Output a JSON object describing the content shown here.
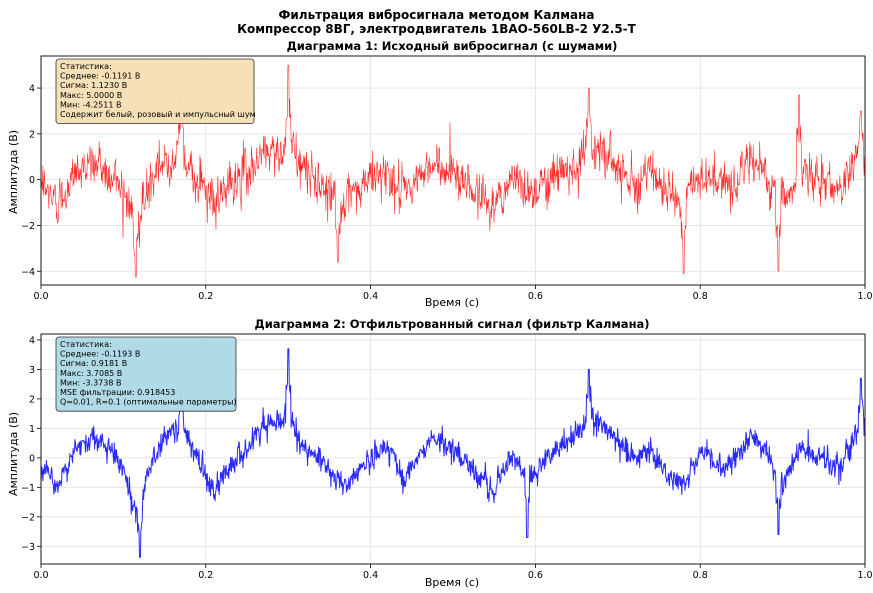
{
  "figure": {
    "title_line1": "Фильтрация вибросигнала методом Калмана",
    "title_line2": "Компрессор 8ВГ, электродвигатель 1ВАО-560LB-2 У2.5-Т"
  },
  "chart_data": [
    {
      "type": "line",
      "title": "Диаграмма 1: Исходный вибросигнал (с шумами)",
      "xlabel": "Время (с)",
      "ylabel": "Амплитуда (В)",
      "xlim": [
        0.0,
        1.0
      ],
      "ylim": [
        -4.6,
        5.4
      ],
      "x_ticks": [
        "0.0",
        "0.2",
        "0.4",
        "0.6",
        "0.8",
        "1.0"
      ],
      "y_ticks": [
        "−4",
        "−2",
        "0",
        "2",
        "4"
      ],
      "y_tick_values": [
        -4,
        -2,
        0,
        2,
        4
      ],
      "grid": true,
      "color": "#ff2a2a",
      "stats_box": {
        "placement": "top-left",
        "color": "#f5deb3",
        "lines": [
          "Статистика:",
          "Среднее: -0.1191 В",
          "Сигма: 1.1230 В",
          "Макс: 5.0000 В",
          "Мин: -4.2511 В",
          "Содержит белый, розовый и импульсный шум"
        ]
      },
      "series": [
        {
          "base": {
            "x": [
              0.0,
              0.02,
              0.04,
              0.06,
              0.08,
              0.1,
              0.115,
              0.13,
              0.15,
              0.17,
              0.19,
              0.21,
              0.23,
              0.25,
              0.27,
              0.3,
              0.32,
              0.35,
              0.37,
              0.4,
              0.42,
              0.44,
              0.47,
              0.5,
              0.53,
              0.55,
              0.57,
              0.6,
              0.62,
              0.65,
              0.67,
              0.7,
              0.72,
              0.74,
              0.76,
              0.78,
              0.8,
              0.83,
              0.86,
              0.88,
              0.9,
              0.92,
              0.95,
              0.97,
              1.0
            ],
            "y": [
              -0.3,
              -1.0,
              0.2,
              0.8,
              0.3,
              -0.3,
              -2.0,
              -0.5,
              0.8,
              1.2,
              0.0,
              -1.2,
              -0.2,
              0.3,
              1.2,
              1.4,
              0.4,
              -0.4,
              -1.2,
              0.1,
              0.4,
              -0.8,
              0.6,
              0.5,
              -0.6,
              -1.2,
              0.0,
              -0.5,
              0.2,
              0.8,
              1.5,
              0.7,
              -0.1,
              0.3,
              -0.6,
              -1.0,
              0.3,
              -0.3,
              0.7,
              0.3,
              -1.0,
              0.3,
              0.0,
              -0.4,
              1.5
            ]
          },
          "noise_sigma": 0.75,
          "spikes": [
            {
              "x": 0.115,
              "y": -4.25
            },
            {
              "x": 0.17,
              "y": 3.9
            },
            {
              "x": 0.3,
              "y": 5.0
            },
            {
              "x": 0.665,
              "y": 4.0
            },
            {
              "x": 0.78,
              "y": -4.1
            },
            {
              "x": 0.92,
              "y": 3.7
            },
            {
              "x": 0.895,
              "y": -4.0
            },
            {
              "x": 0.36,
              "y": -3.6
            },
            {
              "x": 0.995,
              "y": 3.0
            }
          ],
          "samples": 1800
        }
      ]
    },
    {
      "type": "line",
      "title": "Диаграмма 2: Отфильтрованный сигнал (фильтр Калмана)",
      "xlabel": "Время (с)",
      "ylabel": "Амплитуда (В)",
      "xlim": [
        0.0,
        1.0
      ],
      "ylim": [
        -3.6,
        4.2
      ],
      "x_ticks": [
        "0.0",
        "0.2",
        "0.4",
        "0.6",
        "0.8",
        "1.0"
      ],
      "y_ticks": [
        "−3",
        "−2",
        "−1",
        "0",
        "1",
        "2",
        "3",
        "4"
      ],
      "y_tick_values": [
        -3,
        -2,
        -1,
        0,
        1,
        2,
        3,
        4
      ],
      "grid": true,
      "color": "#2a2aff",
      "stats_box": {
        "placement": "top-left",
        "color": "#add8e6",
        "lines": [
          "Статистика:",
          "Среднее: -0.1193 В",
          "Сигма: 0.9181 В",
          "Макс: 3.7085 В",
          "Мин: -3.3738 В",
          "MSE фильтрации: 0.918453",
          "Q=0.01, R=0.1 (оптимальные параметры)"
        ]
      },
      "series": [
        {
          "base": {
            "x": [
              0.0,
              0.02,
              0.04,
              0.06,
              0.08,
              0.1,
              0.115,
              0.13,
              0.15,
              0.17,
              0.19,
              0.21,
              0.23,
              0.25,
              0.27,
              0.3,
              0.32,
              0.35,
              0.37,
              0.4,
              0.42,
              0.44,
              0.47,
              0.5,
              0.53,
              0.55,
              0.57,
              0.6,
              0.62,
              0.65,
              0.67,
              0.7,
              0.72,
              0.74,
              0.76,
              0.78,
              0.8,
              0.83,
              0.86,
              0.88,
              0.9,
              0.92,
              0.95,
              0.97,
              1.0
            ],
            "y": [
              -0.3,
              -0.9,
              0.2,
              0.7,
              0.3,
              -0.3,
              -1.9,
              -0.5,
              0.7,
              1.1,
              0.0,
              -1.1,
              -0.2,
              0.3,
              1.1,
              1.3,
              0.4,
              -0.4,
              -1.1,
              0.1,
              0.4,
              -0.7,
              0.6,
              0.5,
              -0.6,
              -1.1,
              0.0,
              -0.5,
              0.2,
              0.8,
              1.4,
              0.6,
              -0.1,
              0.3,
              -0.6,
              -0.9,
              0.3,
              -0.3,
              0.7,
              0.3,
              -0.9,
              0.3,
              0.0,
              -0.4,
              1.4
            ]
          },
          "noise_sigma": 0.32,
          "spikes": [
            {
              "x": 0.12,
              "y": -3.37
            },
            {
              "x": 0.3,
              "y": 3.7
            },
            {
              "x": 0.665,
              "y": 3.0
            },
            {
              "x": 0.17,
              "y": 2.1
            },
            {
              "x": 0.995,
              "y": 2.7
            },
            {
              "x": 0.895,
              "y": -2.6
            },
            {
              "x": 0.59,
              "y": -2.7
            }
          ],
          "samples": 1800
        }
      ]
    }
  ]
}
